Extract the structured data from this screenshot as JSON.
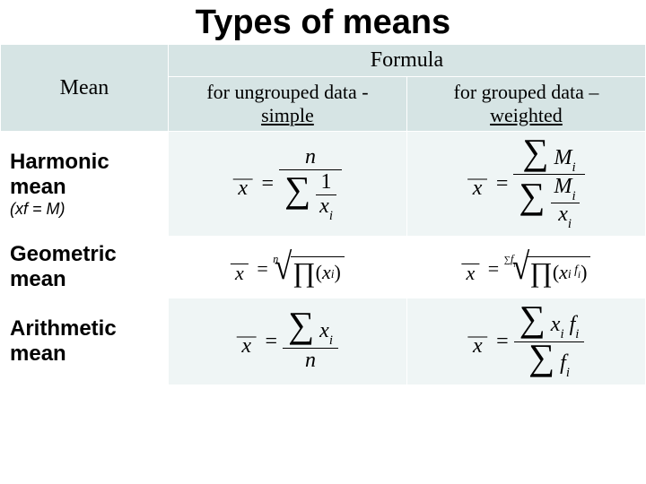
{
  "title": "Types of means",
  "title_fontsize": 38,
  "header_bg": "#d6e4e4",
  "body_bg": "#eff5f5",
  "alt_bg": "#ffffff",
  "text_color": "#000000",
  "table": {
    "col_widths_pct": [
      26,
      37,
      37
    ],
    "header": {
      "mean": "Mean",
      "formula": "Formula",
      "fontsize": 24
    },
    "subheader": {
      "ungrouped_prefix": "for ungrouped data -",
      "ungrouped_emph": "simple",
      "grouped_prefix": "for grouped data –",
      "grouped_emph": "weighted",
      "fontsize": 22
    },
    "rows": [
      {
        "name": "Harmonic mean",
        "note": "(xf = M)",
        "name_fontsize": 24,
        "note_fontsize": 18,
        "formula_fontsize": 24
      },
      {
        "name": "Geometric mean",
        "name_fontsize": 24,
        "formula_fontsize": 22
      },
      {
        "name": "Arithmetic mean",
        "name_fontsize": 24,
        "formula_fontsize": 24
      }
    ]
  }
}
